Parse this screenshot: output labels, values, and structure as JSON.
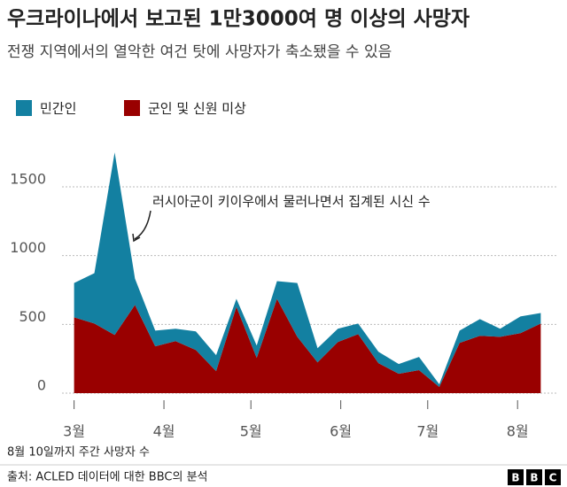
{
  "chart_data": {
    "type": "stacked-area",
    "title": "우크라이나에서 보고된 1만3000여 명 이상의 사망자",
    "subtitle": "전쟁 지역에서의 열악한 여건 탓에 사망자가 축소됐을 수 있음",
    "annotation": "러시아군이 키이우에서 물러나면서 집계된 시신 수",
    "note": "8월 10일까지 주간 사망자 수",
    "source": "출처: ACLED 데이터에 대한 BBC의 분석",
    "logo": [
      "B",
      "B",
      "C"
    ],
    "x": [
      1,
      8,
      15,
      22,
      29,
      36,
      43,
      50,
      57,
      64,
      71,
      78,
      85,
      92,
      99,
      106,
      113,
      120,
      127,
      134,
      141,
      148,
      155,
      162
    ],
    "series": [
      {
        "name": "민간인",
        "color": "#1380a1",
        "values": [
          250,
          366,
          1327,
          192,
          115,
          90,
          135,
          116,
          58,
          90,
          128,
          391,
          103,
          96,
          77,
          83,
          71,
          96,
          19,
          90,
          121,
          58,
          122,
          77
        ]
      },
      {
        "name": "군인 및 신원 미상",
        "color": "#990000",
        "values": [
          551,
          506,
          423,
          641,
          340,
          378,
          314,
          160,
          628,
          256,
          686,
          410,
          224,
          372,
          429,
          218,
          141,
          167,
          45,
          365,
          417,
          410,
          436,
          506
        ]
      }
    ],
    "xlim": [
      -5,
      168
    ],
    "xticks": [
      {
        "value": 1,
        "label": "3월"
      },
      {
        "value": 32,
        "label": "4월"
      },
      {
        "value": 62,
        "label": "5월"
      },
      {
        "value": 93,
        "label": "6월"
      },
      {
        "value": 123,
        "label": "7월"
      },
      {
        "value": 154,
        "label": "8월"
      }
    ],
    "ylim": [
      0,
      1800
    ],
    "yticks": [
      0,
      500,
      1000,
      1500
    ],
    "grid": true
  }
}
